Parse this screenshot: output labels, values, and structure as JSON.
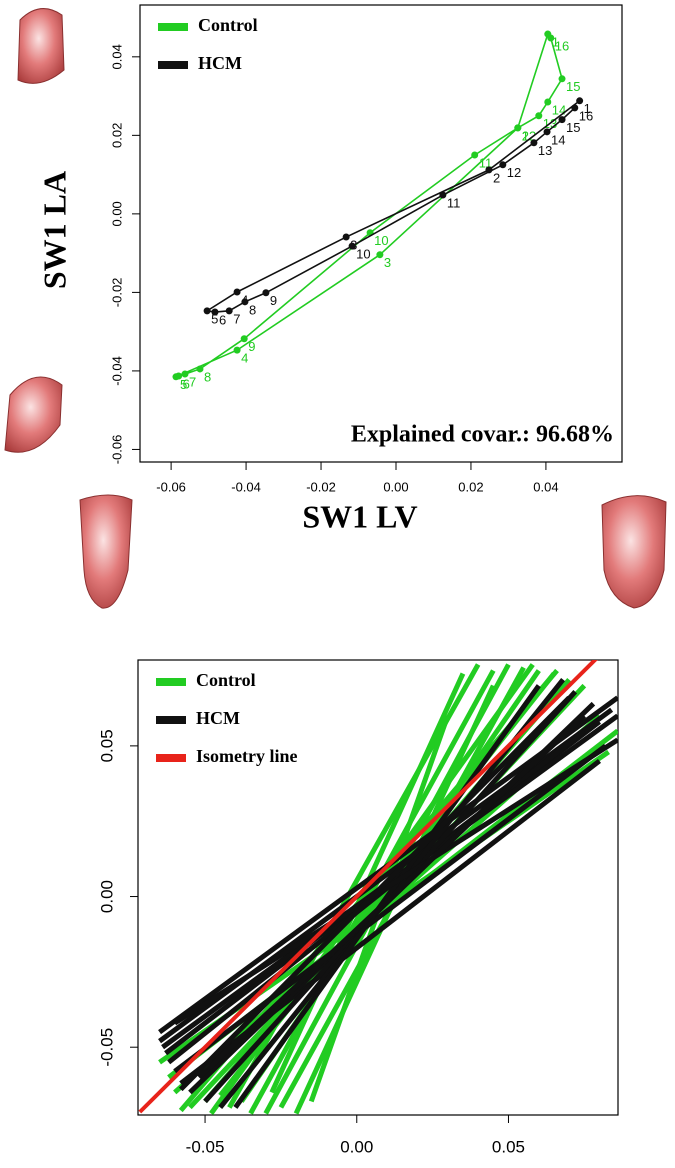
{
  "chart_data": [
    {
      "type": "line",
      "x_label": "SW1 LV",
      "y_label": "SW1 LA",
      "annotation": "Explained covar.: 96.68%",
      "xlim": [
        -0.0683,
        0.0603
      ],
      "ylim": [
        -0.0632,
        0.0532
      ],
      "xticks": [
        -0.06,
        -0.04,
        -0.02,
        {
          "value": 0,
          "label": "0.00"
        },
        0.02,
        0.04
      ],
      "yticks": [
        -0.06,
        -0.04,
        -0.02,
        {
          "value": 0,
          "label": "0.00"
        },
        0.02,
        0.04
      ],
      "legend": "top-left",
      "point_labels": [
        "1",
        "2",
        "3",
        "4",
        "5",
        "6",
        "7",
        "8",
        "9",
        "10",
        "11",
        "12",
        "13",
        "14",
        "15",
        "16"
      ],
      "series": [
        {
          "name": "Control",
          "color": "#22cc22",
          "x": [
            0.0405,
            0.0325,
            -0.0043,
            -0.0424,
            -0.0587,
            -0.058,
            -0.0563,
            -0.0523,
            -0.0405,
            -0.0069,
            0.021,
            0.0325,
            0.0381,
            0.0405,
            0.0443,
            0.0413
          ],
          "values": [
            0.0458,
            0.0219,
            -0.0104,
            -0.0347,
            -0.0415,
            -0.0413,
            -0.0408,
            -0.0395,
            -0.0318,
            -0.0048,
            0.015,
            0.0219,
            0.025,
            0.0285,
            0.0344,
            0.0448
          ]
        },
        {
          "name": "HCM",
          "color": "#111111",
          "x": [
            0.049,
            0.0248,
            -0.0133,
            -0.0424,
            -0.0504,
            -0.0483,
            -0.0445,
            -0.0403,
            -0.0347,
            -0.0117,
            0.0125,
            0.0285,
            0.0368,
            0.0403,
            0.0443,
            0.0477
          ],
          "values": [
            0.0288,
            0.0112,
            -0.0059,
            -0.0199,
            -0.0247,
            -0.025,
            -0.0247,
            -0.0224,
            -0.0201,
            -0.0082,
            0.0048,
            0.0125,
            0.0181,
            0.0209,
            0.024,
            0.027
          ]
        }
      ]
    },
    {
      "type": "segment",
      "xlim": [
        -0.0721,
        0.0861
      ],
      "ylim": [
        -0.0725,
        0.0785
      ],
      "xticks": [
        -0.05,
        {
          "value": 0,
          "label": "0.00"
        },
        0.05
      ],
      "yticks": [
        -0.05,
        {
          "value": 0,
          "label": "0.00"
        },
        0.05
      ],
      "legend": "top-left",
      "series": [
        {
          "name": "Control",
          "color": "#22cc22",
          "segments": [
            {
              "x": [
                -0.042,
                0.04
              ],
              "y": [
                -0.07,
                0.077
              ]
            },
            {
              "x": [
                -0.035,
                0.045
              ],
              "y": [
                -0.072,
                0.075
              ]
            },
            {
              "x": [
                -0.03,
                0.05
              ],
              "y": [
                -0.072,
                0.077
              ]
            },
            {
              "x": [
                -0.025,
                0.055
              ],
              "y": [
                -0.07,
                0.076
              ]
            },
            {
              "x": [
                -0.02,
                0.045
              ],
              "y": [
                -0.072,
                0.07
              ]
            },
            {
              "x": [
                -0.038,
                0.06
              ],
              "y": [
                -0.068,
                0.075
              ]
            },
            {
              "x": [
                -0.045,
                0.065
              ],
              "y": [
                -0.066,
                0.074
              ]
            },
            {
              "x": [
                -0.05,
                0.07
              ],
              "y": [
                -0.068,
                0.072
              ]
            },
            {
              "x": [
                -0.055,
                0.075
              ],
              "y": [
                -0.07,
                0.07
              ]
            },
            {
              "x": [
                -0.06,
                0.08
              ],
              "y": [
                -0.065,
                0.06
              ]
            },
            {
              "x": [
                -0.062,
                0.086
              ],
              "y": [
                -0.06,
                0.055
              ]
            },
            {
              "x": [
                -0.065,
                0.083
              ],
              "y": [
                -0.055,
                0.048
              ]
            },
            {
              "x": [
                -0.028,
                0.035
              ],
              "y": [
                -0.065,
                0.074
              ]
            },
            {
              "x": [
                -0.015,
                0.03
              ],
              "y": [
                -0.068,
                0.06
              ]
            },
            {
              "x": [
                -0.048,
                0.058
              ],
              "y": [
                -0.072,
                0.077
              ]
            },
            {
              "x": [
                -0.058,
                0.066
              ],
              "y": [
                -0.071,
                0.075
              ]
            }
          ]
        },
        {
          "name": "HCM",
          "color": "#111111",
          "segments": [
            {
              "x": [
                -0.065,
                0.086
              ],
              "y": [
                -0.045,
                0.066
              ]
            },
            {
              "x": [
                -0.065,
                0.084
              ],
              "y": [
                -0.048,
                0.062
              ]
            },
            {
              "x": [
                -0.063,
                0.08
              ],
              "y": [
                -0.052,
                0.058
              ]
            },
            {
              "x": [
                -0.062,
                0.075
              ],
              "y": [
                -0.055,
                0.055
              ]
            },
            {
              "x": [
                -0.06,
                0.082
              ],
              "y": [
                -0.058,
                0.05
              ]
            },
            {
              "x": [
                -0.058,
                0.08
              ],
              "y": [
                -0.062,
                0.045
              ]
            },
            {
              "x": [
                -0.064,
                0.086
              ],
              "y": [
                -0.05,
                0.06
              ]
            },
            {
              "x": [
                -0.055,
                0.078
              ],
              "y": [
                -0.065,
                0.064
              ]
            },
            {
              "x": [
                -0.05,
                0.072
              ],
              "y": [
                -0.068,
                0.068
              ]
            },
            {
              "x": [
                -0.045,
                0.068
              ],
              "y": [
                -0.07,
                0.072
              ]
            },
            {
              "x": [
                -0.04,
                0.06
              ],
              "y": [
                -0.07,
                0.07
              ]
            },
            {
              "x": [
                -0.06,
                0.086
              ],
              "y": [
                -0.042,
                0.052
              ]
            },
            {
              "x": [
                -0.052,
                0.075
              ],
              "y": [
                -0.06,
                0.06
              ]
            },
            {
              "x": [
                -0.058,
                0.07
              ],
              "y": [
                -0.064,
                0.066
              ]
            }
          ]
        },
        {
          "name": "Isometry line",
          "color": "#e8231a",
          "segments": [
            {
              "x": [
                -0.0715,
                0.079
              ],
              "y": [
                -0.0715,
                0.079
              ]
            }
          ]
        }
      ]
    }
  ]
}
